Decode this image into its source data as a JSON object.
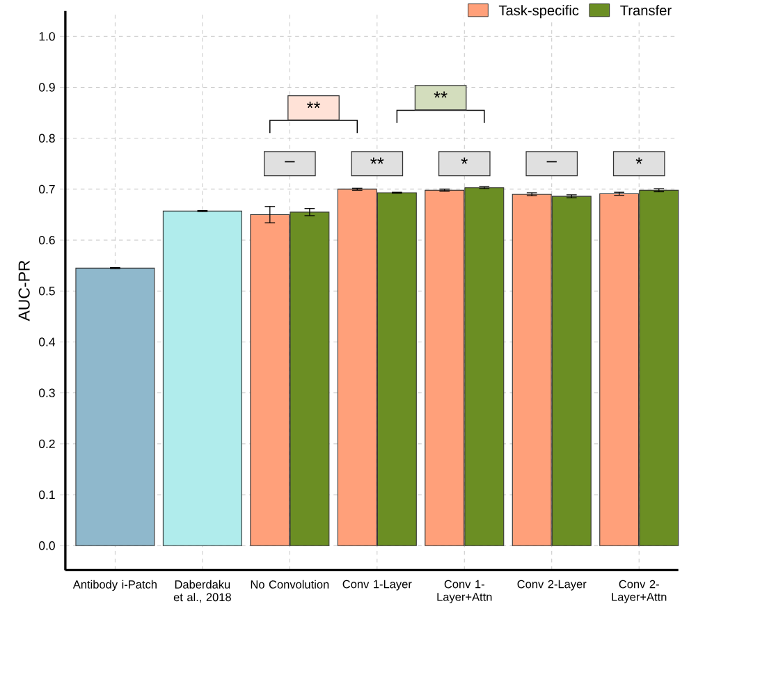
{
  "chart_data": {
    "type": "bar",
    "ylabel": "AUC-PR",
    "categories": [
      "Antibody i-Patch",
      "Daberdaku et al., 2018",
      "No Convolution",
      "Conv 1-Layer",
      "Conv 1-Layer+Attn",
      "Conv 2-Layer",
      "Conv 2-Layer+Attn"
    ],
    "series": [
      {
        "colors": [
          "#8fb8cc",
          "#b0ecec",
          null,
          null,
          null,
          null,
          null
        ],
        "values": [
          0.545,
          0.657,
          null,
          null,
          null,
          null,
          null
        ],
        "errors": [
          0.001,
          0.001,
          null,
          null,
          null,
          null,
          null
        ]
      },
      {
        "name": "Task-specific",
        "color": "#ffa07a",
        "values": [
          null,
          null,
          0.65,
          0.7,
          0.698,
          0.69,
          0.691
        ],
        "errors": [
          null,
          null,
          0.016,
          0.002,
          0.002,
          0.003,
          0.003
        ]
      },
      {
        "name": "Transfer",
        "color": "#6b8e23",
        "values": [
          null,
          null,
          0.655,
          0.693,
          0.703,
          0.686,
          0.698
        ],
        "errors": [
          null,
          null,
          0.007,
          0.001,
          0.002,
          0.003,
          0.003
        ]
      }
    ],
    "ylim": [
      -0.048,
      1.05
    ],
    "yticks": [
      {
        "value": 0,
        "label": "0.0"
      },
      0.1,
      0.2,
      0.3,
      0.4,
      0.5,
      0.6,
      0.7,
      0.8,
      0.9,
      {
        "value": 1,
        "label": "1.0"
      }
    ],
    "grid": true,
    "legend": "top right",
    "annotations": [
      "–",
      "**",
      "*",
      "–",
      "*",
      "**",
      "**"
    ]
  }
}
